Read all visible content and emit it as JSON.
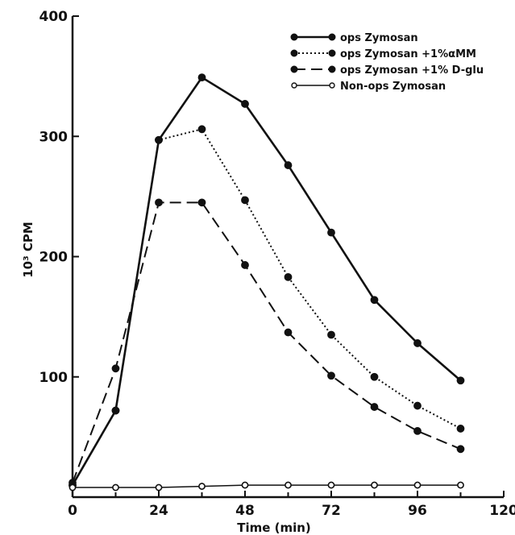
{
  "chart_data": {
    "type": "line",
    "xlabel": "Time (min)",
    "ylabel": "10³ CPM",
    "xlim": [
      0,
      120
    ],
    "ylim": [
      0,
      400
    ],
    "xticks": [
      0,
      24,
      48,
      72,
      96,
      120
    ],
    "yticks": [
      100,
      200,
      300,
      400
    ],
    "grid": false,
    "legend_position": "top-right",
    "series": [
      {
        "name": "ops Zymosan",
        "style": "solid",
        "marker": "filled",
        "x": [
          0,
          12,
          24,
          36,
          48,
          60,
          72,
          84,
          96,
          108
        ],
        "y": [
          10,
          72,
          297,
          349,
          327,
          276,
          220,
          164,
          128,
          97
        ]
      },
      {
        "name": "ops Zymosan +1%αMM",
        "style": "dotted",
        "marker": "filled",
        "x": [
          0,
          12,
          24,
          36,
          48,
          60,
          72,
          84,
          96,
          108
        ],
        "y": [
          10,
          72,
          297,
          306,
          247,
          183,
          135,
          100,
          76,
          57
        ]
      },
      {
        "name": "ops Zymosan +1% D-glu",
        "style": "dashed",
        "marker": "filled",
        "x": [
          0,
          12,
          24,
          36,
          48,
          60,
          72,
          84,
          96,
          108
        ],
        "y": [
          12,
          107,
          245,
          245,
          193,
          137,
          101,
          75,
          55,
          40
        ]
      },
      {
        "name": "Non-ops Zymosan",
        "style": "solid-thin",
        "marker": "open",
        "x": [
          0,
          12,
          24,
          36,
          48,
          60,
          72,
          84,
          96,
          108
        ],
        "y": [
          8,
          8,
          8,
          9,
          10,
          10,
          10,
          10,
          10,
          10
        ]
      }
    ]
  }
}
